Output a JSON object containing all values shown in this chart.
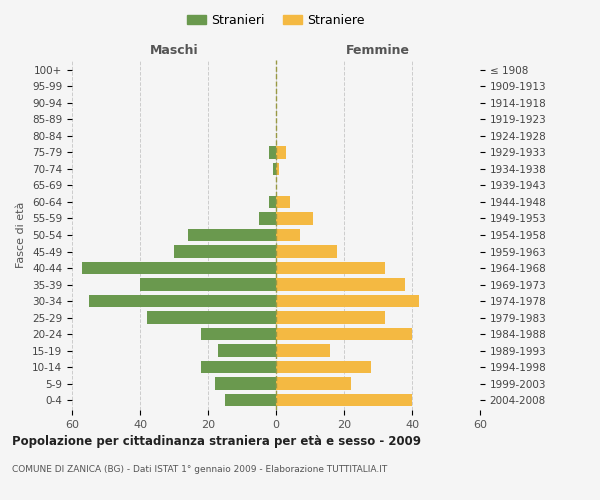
{
  "age_groups": [
    "0-4",
    "5-9",
    "10-14",
    "15-19",
    "20-24",
    "25-29",
    "30-34",
    "35-39",
    "40-44",
    "45-49",
    "50-54",
    "55-59",
    "60-64",
    "65-69",
    "70-74",
    "75-79",
    "80-84",
    "85-89",
    "90-94",
    "95-99",
    "100+"
  ],
  "birth_years": [
    "2004-2008",
    "1999-2003",
    "1994-1998",
    "1989-1993",
    "1984-1988",
    "1979-1983",
    "1974-1978",
    "1969-1973",
    "1964-1968",
    "1959-1963",
    "1954-1958",
    "1949-1953",
    "1944-1948",
    "1939-1943",
    "1934-1938",
    "1929-1933",
    "1924-1928",
    "1919-1923",
    "1914-1918",
    "1909-1913",
    "≤ 1908"
  ],
  "males": [
    15,
    18,
    22,
    17,
    22,
    38,
    55,
    40,
    57,
    30,
    26,
    5,
    2,
    0,
    1,
    2,
    0,
    0,
    0,
    0,
    0
  ],
  "females": [
    40,
    22,
    28,
    16,
    40,
    32,
    42,
    38,
    32,
    18,
    7,
    11,
    4,
    0,
    1,
    3,
    0,
    0,
    0,
    0,
    0
  ],
  "male_color": "#6a994e",
  "female_color": "#f4b942",
  "title": "Popolazione per cittadinanza straniera per età e sesso - 2009",
  "subtitle": "COMUNE DI ZANICA (BG) - Dati ISTAT 1° gennaio 2009 - Elaborazione TUTTITALIA.IT",
  "xlabel_left": "Maschi",
  "xlabel_right": "Femmine",
  "ylabel_left": "Fasce di età",
  "legend_male": "Stranieri",
  "legend_female": "Straniere",
  "xlim": 60,
  "background_color": "#f5f5f5",
  "grid_color": "#cccccc",
  "bar_height": 0.75
}
